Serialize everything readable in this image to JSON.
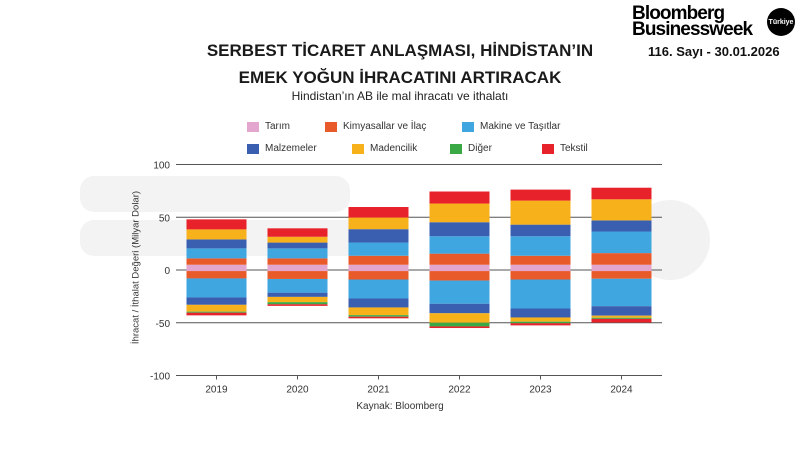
{
  "brand": {
    "line1": "Bloomberg",
    "line2": "Businessweek",
    "badge": "Türkiye",
    "issue": "116. Sayı - 30.01.2026"
  },
  "header": {
    "title_line1": "SERBEST TİCARET ANLAŞMASI, HİNDİSTAN’IN",
    "title_line2": "EMEK YOĞUN İHRACATINI ARTIRACAK",
    "subtitle": "Hindistan’ın AB ile mal ihracatı ve ithalatı"
  },
  "watermark": {
    "line1": "Bloomberg",
    "line2": "Businessweek"
  },
  "source": "Kaynak: Bloomberg",
  "chart_data": {
    "type": "bar",
    "stacked": true,
    "categories": [
      "2019",
      "2020",
      "2021",
      "2022",
      "2023",
      "2024"
    ],
    "ylabel": "İhracat / İthalat Değeri (Milyar Dolar)",
    "ylim": [
      -100,
      100
    ],
    "yticks": [
      100,
      50,
      0,
      -50,
      -100
    ],
    "grid": true,
    "legend_position": "top",
    "series": [
      {
        "name": "Tarım",
        "color": "#e3a6cf",
        "export": [
          5,
          5,
          5,
          5,
          5,
          5
        ],
        "import": [
          -1,
          -1,
          -1,
          -1,
          -1,
          -1
        ]
      },
      {
        "name": "Kimyasallar ve İlaç",
        "color": "#e95a2a",
        "export": [
          6,
          6,
          8.5,
          10.5,
          8.5,
          11
        ],
        "import": [
          -7,
          -7.5,
          -8,
          -9,
          -8,
          -7.3
        ]
      },
      {
        "name": "Makine ve Taşıtlar",
        "color": "#3fa6e0",
        "export": [
          9.5,
          9.5,
          12.5,
          16.5,
          18.5,
          20.5
        ],
        "import": [
          -18,
          -13,
          -18,
          -22,
          -27.5,
          -26
        ]
      },
      {
        "name": "Malzemeler",
        "color": "#3a5fb0",
        "export": [
          8.5,
          5.5,
          12.7,
          13.3,
          11,
          10.5
        ],
        "import": [
          -7,
          -4,
          -8.5,
          -9,
          -8.5,
          -9
        ]
      },
      {
        "name": "Madencilik",
        "color": "#f7b21b",
        "export": [
          9.5,
          5.5,
          11,
          17.7,
          22.8,
          20
        ],
        "import": [
          -6.5,
          -5,
          -7.3,
          -9,
          -4,
          -2
        ]
      },
      {
        "name": "Diğer",
        "color": "#3aa845",
        "export": [
          0,
          0,
          0,
          0,
          0,
          0
        ],
        "import": [
          -1,
          -2,
          -1.5,
          -3.5,
          -1.5,
          -1
        ]
      },
      {
        "name": "Tekstil",
        "color": "#e8222a",
        "export": [
          9.5,
          8,
          10,
          11.4,
          10.4,
          11
        ],
        "import": [
          -2.5,
          -1.5,
          -1.5,
          -1.5,
          -2,
          -3.5
        ]
      }
    ]
  }
}
